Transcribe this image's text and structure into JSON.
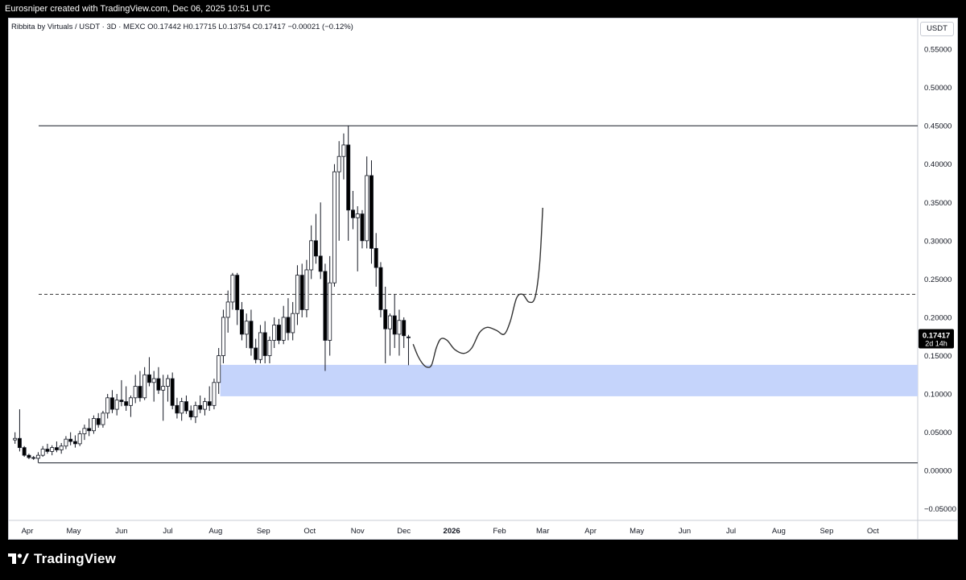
{
  "header": {
    "credit": "Eurosniper created with TradingView.com, Dec 06, 2025 10:51 UTC"
  },
  "symbol": {
    "name": "Ribbita by Virtuals / USDT · 3D · MEXC",
    "open_label": "O",
    "open": "0.17442",
    "high_label": "H",
    "high": "0.17715",
    "low_label": "L",
    "low": "0.13754",
    "close_label": "C",
    "close": "0.17417",
    "change": "−0.00021 (−0.12%)"
  },
  "price_axis": {
    "currency": "USDT",
    "last_price": "0.17417",
    "countdown": "2d 14h"
  },
  "colors": {
    "candle_up": "#ffffff",
    "candle_down": "#000000",
    "zone_fill": "#c5d4fb",
    "last_price_bg": "#000000"
  },
  "footer": {
    "logo_icon": "tradingview-logo-icon",
    "logo_text": "TradingView"
  },
  "chart_data": {
    "type": "candlestick",
    "y_ticks": [
      "0.55000",
      "0.50000",
      "0.45000",
      "0.40000",
      "0.35000",
      "0.30000",
      "0.25000",
      "0.20000",
      "0.15000",
      "0.10000",
      "0.05000",
      "0.00000",
      "−0.05000"
    ],
    "y_tick_values": [
      0.55,
      0.5,
      0.45,
      0.4,
      0.35,
      0.3,
      0.25,
      0.2,
      0.15,
      0.1,
      0.05,
      0.0,
      -0.05
    ],
    "ylim": [
      -0.065,
      0.59
    ],
    "x_ticks": [
      {
        "label": "Apr",
        "date": "2025-04-01"
      },
      {
        "label": "May",
        "date": "2025-05-01"
      },
      {
        "label": "Jun",
        "date": "2025-06-01"
      },
      {
        "label": "Jul",
        "date": "2025-07-01"
      },
      {
        "label": "Aug",
        "date": "2025-08-01"
      },
      {
        "label": "Sep",
        "date": "2025-09-01"
      },
      {
        "label": "Oct",
        "date": "2025-10-01"
      },
      {
        "label": "Nov",
        "date": "2025-11-01"
      },
      {
        "label": "Dec",
        "date": "2025-12-01"
      },
      {
        "label": "2026",
        "date": "2026-01-01"
      },
      {
        "label": "Feb",
        "date": "2026-02-01"
      },
      {
        "label": "Mar",
        "date": "2026-03-01"
      },
      {
        "label": "Apr",
        "date": "2026-04-01"
      },
      {
        "label": "May",
        "date": "2026-05-01"
      },
      {
        "label": "Jun",
        "date": "2026-06-01"
      },
      {
        "label": "Jul",
        "date": "2026-07-01"
      },
      {
        "label": "Aug",
        "date": "2026-08-01"
      },
      {
        "label": "Sep",
        "date": "2026-09-01"
      },
      {
        "label": "Oct",
        "date": "2026-10-01"
      }
    ],
    "xlim": [
      "2025-03-20",
      "2026-10-30"
    ],
    "candles": [
      {
        "date": "2025-03-24",
        "o": 0.04,
        "h": 0.05,
        "l": 0.035,
        "c": 0.042
      },
      {
        "date": "2025-03-27",
        "o": 0.042,
        "h": 0.08,
        "l": 0.025,
        "c": 0.03
      },
      {
        "date": "2025-03-30",
        "o": 0.03,
        "h": 0.032,
        "l": 0.018,
        "c": 0.02
      },
      {
        "date": "2025-04-02",
        "o": 0.02,
        "h": 0.022,
        "l": 0.015,
        "c": 0.017
      },
      {
        "date": "2025-04-05",
        "o": 0.017,
        "h": 0.019,
        "l": 0.014,
        "c": 0.016
      },
      {
        "date": "2025-04-08",
        "o": 0.016,
        "h": 0.024,
        "l": 0.01,
        "c": 0.02
      },
      {
        "date": "2025-04-11",
        "o": 0.02,
        "h": 0.032,
        "l": 0.018,
        "c": 0.028
      },
      {
        "date": "2025-04-14",
        "o": 0.028,
        "h": 0.035,
        "l": 0.022,
        "c": 0.025
      },
      {
        "date": "2025-04-17",
        "o": 0.025,
        "h": 0.033,
        "l": 0.02,
        "c": 0.03
      },
      {
        "date": "2025-04-20",
        "o": 0.03,
        "h": 0.038,
        "l": 0.024,
        "c": 0.027
      },
      {
        "date": "2025-04-23",
        "o": 0.027,
        "h": 0.036,
        "l": 0.022,
        "c": 0.032
      },
      {
        "date": "2025-04-26",
        "o": 0.032,
        "h": 0.045,
        "l": 0.028,
        "c": 0.041
      },
      {
        "date": "2025-04-29",
        "o": 0.041,
        "h": 0.05,
        "l": 0.033,
        "c": 0.038
      },
      {
        "date": "2025-05-02",
        "o": 0.038,
        "h": 0.046,
        "l": 0.03,
        "c": 0.035
      },
      {
        "date": "2025-05-05",
        "o": 0.035,
        "h": 0.052,
        "l": 0.032,
        "c": 0.048
      },
      {
        "date": "2025-05-08",
        "o": 0.048,
        "h": 0.06,
        "l": 0.04,
        "c": 0.055
      },
      {
        "date": "2025-05-11",
        "o": 0.055,
        "h": 0.068,
        "l": 0.045,
        "c": 0.052
      },
      {
        "date": "2025-05-14",
        "o": 0.052,
        "h": 0.072,
        "l": 0.048,
        "c": 0.068
      },
      {
        "date": "2025-05-17",
        "o": 0.068,
        "h": 0.075,
        "l": 0.056,
        "c": 0.06
      },
      {
        "date": "2025-05-20",
        "o": 0.06,
        "h": 0.078,
        "l": 0.056,
        "c": 0.075
      },
      {
        "date": "2025-05-23",
        "o": 0.075,
        "h": 0.1,
        "l": 0.068,
        "c": 0.095
      },
      {
        "date": "2025-05-26",
        "o": 0.095,
        "h": 0.105,
        "l": 0.075,
        "c": 0.08
      },
      {
        "date": "2025-05-29",
        "o": 0.08,
        "h": 0.1,
        "l": 0.072,
        "c": 0.092
      },
      {
        "date": "2025-06-01",
        "o": 0.092,
        "h": 0.118,
        "l": 0.084,
        "c": 0.09
      },
      {
        "date": "2025-06-04",
        "o": 0.09,
        "h": 0.11,
        "l": 0.078,
        "c": 0.085
      },
      {
        "date": "2025-06-07",
        "o": 0.085,
        "h": 0.098,
        "l": 0.07,
        "c": 0.095
      },
      {
        "date": "2025-06-10",
        "o": 0.095,
        "h": 0.125,
        "l": 0.088,
        "c": 0.11
      },
      {
        "date": "2025-06-13",
        "o": 0.11,
        "h": 0.13,
        "l": 0.09,
        "c": 0.095
      },
      {
        "date": "2025-06-16",
        "o": 0.095,
        "h": 0.135,
        "l": 0.092,
        "c": 0.125
      },
      {
        "date": "2025-06-19",
        "o": 0.125,
        "h": 0.148,
        "l": 0.11,
        "c": 0.115
      },
      {
        "date": "2025-06-22",
        "o": 0.115,
        "h": 0.13,
        "l": 0.09,
        "c": 0.12
      },
      {
        "date": "2025-06-25",
        "o": 0.12,
        "h": 0.135,
        "l": 0.1,
        "c": 0.105
      },
      {
        "date": "2025-06-28",
        "o": 0.105,
        "h": 0.125,
        "l": 0.065,
        "c": 0.11
      },
      {
        "date": "2025-07-01",
        "o": 0.11,
        "h": 0.125,
        "l": 0.09,
        "c": 0.12
      },
      {
        "date": "2025-07-04",
        "o": 0.12,
        "h": 0.128,
        "l": 0.08,
        "c": 0.085
      },
      {
        "date": "2025-07-07",
        "o": 0.085,
        "h": 0.095,
        "l": 0.068,
        "c": 0.075
      },
      {
        "date": "2025-07-10",
        "o": 0.075,
        "h": 0.095,
        "l": 0.065,
        "c": 0.09
      },
      {
        "date": "2025-07-13",
        "o": 0.09,
        "h": 0.098,
        "l": 0.074,
        "c": 0.078
      },
      {
        "date": "2025-07-16",
        "o": 0.078,
        "h": 0.085,
        "l": 0.066,
        "c": 0.07
      },
      {
        "date": "2025-07-19",
        "o": 0.07,
        "h": 0.09,
        "l": 0.062,
        "c": 0.085
      },
      {
        "date": "2025-07-22",
        "o": 0.085,
        "h": 0.098,
        "l": 0.075,
        "c": 0.08
      },
      {
        "date": "2025-07-25",
        "o": 0.08,
        "h": 0.095,
        "l": 0.072,
        "c": 0.09
      },
      {
        "date": "2025-07-28",
        "o": 0.09,
        "h": 0.11,
        "l": 0.078,
        "c": 0.085
      },
      {
        "date": "2025-07-31",
        "o": 0.085,
        "h": 0.12,
        "l": 0.08,
        "c": 0.115
      },
      {
        "date": "2025-08-03",
        "o": 0.115,
        "h": 0.16,
        "l": 0.1,
        "c": 0.15
      },
      {
        "date": "2025-08-06",
        "o": 0.15,
        "h": 0.21,
        "l": 0.14,
        "c": 0.2
      },
      {
        "date": "2025-08-09",
        "o": 0.2,
        "h": 0.235,
        "l": 0.18,
        "c": 0.22
      },
      {
        "date": "2025-08-12",
        "o": 0.22,
        "h": 0.258,
        "l": 0.21,
        "c": 0.255
      },
      {
        "date": "2025-08-15",
        "o": 0.255,
        "h": 0.258,
        "l": 0.19,
        "c": 0.21
      },
      {
        "date": "2025-08-18",
        "o": 0.21,
        "h": 0.22,
        "l": 0.17,
        "c": 0.178
      },
      {
        "date": "2025-08-21",
        "o": 0.178,
        "h": 0.205,
        "l": 0.16,
        "c": 0.195
      },
      {
        "date": "2025-08-24",
        "o": 0.195,
        "h": 0.21,
        "l": 0.15,
        "c": 0.16
      },
      {
        "date": "2025-08-27",
        "o": 0.16,
        "h": 0.172,
        "l": 0.14,
        "c": 0.145
      },
      {
        "date": "2025-08-30",
        "o": 0.145,
        "h": 0.19,
        "l": 0.14,
        "c": 0.18
      },
      {
        "date": "2025-09-02",
        "o": 0.18,
        "h": 0.195,
        "l": 0.14,
        "c": 0.15
      },
      {
        "date": "2025-09-05",
        "o": 0.15,
        "h": 0.175,
        "l": 0.14,
        "c": 0.17
      },
      {
        "date": "2025-09-08",
        "o": 0.17,
        "h": 0.2,
        "l": 0.16,
        "c": 0.19
      },
      {
        "date": "2025-09-11",
        "o": 0.19,
        "h": 0.198,
        "l": 0.165,
        "c": 0.17
      },
      {
        "date": "2025-09-14",
        "o": 0.17,
        "h": 0.215,
        "l": 0.165,
        "c": 0.2
      },
      {
        "date": "2025-09-17",
        "o": 0.2,
        "h": 0.225,
        "l": 0.17,
        "c": 0.18
      },
      {
        "date": "2025-09-20",
        "o": 0.18,
        "h": 0.22,
        "l": 0.17,
        "c": 0.205
      },
      {
        "date": "2025-09-23",
        "o": 0.205,
        "h": 0.268,
        "l": 0.19,
        "c": 0.255
      },
      {
        "date": "2025-09-26",
        "o": 0.255,
        "h": 0.27,
        "l": 0.2,
        "c": 0.21
      },
      {
        "date": "2025-09-29",
        "o": 0.21,
        "h": 0.275,
        "l": 0.2,
        "c": 0.262
      },
      {
        "date": "2025-10-02",
        "o": 0.262,
        "h": 0.32,
        "l": 0.25,
        "c": 0.3
      },
      {
        "date": "2025-10-05",
        "o": 0.3,
        "h": 0.335,
        "l": 0.27,
        "c": 0.28
      },
      {
        "date": "2025-10-08",
        "o": 0.28,
        "h": 0.35,
        "l": 0.25,
        "c": 0.26
      },
      {
        "date": "2025-10-11",
        "o": 0.26,
        "h": 0.27,
        "l": 0.13,
        "c": 0.17
      },
      {
        "date": "2025-10-14",
        "o": 0.17,
        "h": 0.28,
        "l": 0.15,
        "c": 0.245
      },
      {
        "date": "2025-10-17",
        "o": 0.245,
        "h": 0.4,
        "l": 0.24,
        "c": 0.39
      },
      {
        "date": "2025-10-20",
        "o": 0.39,
        "h": 0.43,
        "l": 0.3,
        "c": 0.41
      },
      {
        "date": "2025-10-23",
        "o": 0.41,
        "h": 0.44,
        "l": 0.38,
        "c": 0.425
      },
      {
        "date": "2025-10-26",
        "o": 0.425,
        "h": 0.45,
        "l": 0.3,
        "c": 0.34
      },
      {
        "date": "2025-10-29",
        "o": 0.34,
        "h": 0.365,
        "l": 0.315,
        "c": 0.33
      },
      {
        "date": "2025-11-01",
        "o": 0.33,
        "h": 0.345,
        "l": 0.26,
        "c": 0.335
      },
      {
        "date": "2025-11-04",
        "o": 0.335,
        "h": 0.34,
        "l": 0.29,
        "c": 0.3
      },
      {
        "date": "2025-11-07",
        "o": 0.3,
        "h": 0.41,
        "l": 0.29,
        "c": 0.385
      },
      {
        "date": "2025-11-10",
        "o": 0.385,
        "h": 0.405,
        "l": 0.27,
        "c": 0.29
      },
      {
        "date": "2025-11-13",
        "o": 0.29,
        "h": 0.31,
        "l": 0.24,
        "c": 0.265
      },
      {
        "date": "2025-11-16",
        "o": 0.265,
        "h": 0.272,
        "l": 0.2,
        "c": 0.21
      },
      {
        "date": "2025-11-19",
        "o": 0.21,
        "h": 0.24,
        "l": 0.14,
        "c": 0.185
      },
      {
        "date": "2025-11-22",
        "o": 0.185,
        "h": 0.205,
        "l": 0.15,
        "c": 0.202
      },
      {
        "date": "2025-11-25",
        "o": 0.202,
        "h": 0.23,
        "l": 0.16,
        "c": 0.178
      },
      {
        "date": "2025-11-28",
        "o": 0.178,
        "h": 0.21,
        "l": 0.15,
        "c": 0.196
      },
      {
        "date": "2025-12-01",
        "o": 0.196,
        "h": 0.2,
        "l": 0.16,
        "c": 0.176
      },
      {
        "date": "2025-12-04",
        "o": 0.17442,
        "h": 0.17715,
        "l": 0.13754,
        "c": 0.17417
      }
    ],
    "horizontal_lines": [
      {
        "value": 0.45,
        "style": "solid"
      },
      {
        "value": 0.23,
        "style": "dashed"
      },
      {
        "value": 0.01,
        "style": "solid"
      }
    ],
    "zone": {
      "from_date": "2025-08-04",
      "y_low": 0.097,
      "y_high": 0.138
    },
    "projection_path": [
      [
        "2025-12-07",
        0.165
      ],
      [
        "2025-12-10",
        0.15
      ],
      [
        "2025-12-13",
        0.14
      ],
      [
        "2025-12-16",
        0.135
      ],
      [
        "2025-12-19",
        0.138
      ],
      [
        "2025-12-22",
        0.16
      ],
      [
        "2025-12-25",
        0.172
      ],
      [
        "2025-12-29",
        0.17
      ],
      [
        "2026-01-03",
        0.158
      ],
      [
        "2026-01-09",
        0.153
      ],
      [
        "2026-01-14",
        0.16
      ],
      [
        "2026-01-19",
        0.18
      ],
      [
        "2026-01-24",
        0.187
      ],
      [
        "2026-01-30",
        0.183
      ],
      [
        "2026-02-04",
        0.178
      ],
      [
        "2026-02-08",
        0.195
      ],
      [
        "2026-02-12",
        0.225
      ],
      [
        "2026-02-16",
        0.23
      ],
      [
        "2026-02-20",
        0.22
      ],
      [
        "2026-02-24",
        0.226
      ],
      [
        "2026-02-27",
        0.27
      ],
      [
        "2026-03-01",
        0.343
      ]
    ]
  }
}
